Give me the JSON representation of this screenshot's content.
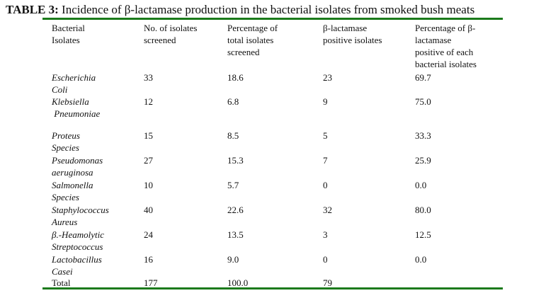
{
  "title": {
    "lead": "TABLE 3:",
    "text": " Incidence of β-lactamase production in the bacterial isolates from smoked bush meats"
  },
  "headers": {
    "col1": [
      "Bacterial",
      "Isolates"
    ],
    "col2": [
      "No. of isolates",
      "screened"
    ],
    "col3": [
      "Percentage of",
      "total isolates",
      "screened"
    ],
    "col4": [
      "β-lactamase",
      "positive isolates"
    ],
    "col5": [
      "Percentage of β-",
      "lactamase",
      "positive of each",
      "bacterial isolates"
    ]
  },
  "rows": [
    {
      "name": [
        "Escherichia",
        "Coli"
      ],
      "screened": "33",
      "pct_total": "18.6",
      "positive": "23",
      "pct_positive": "69.7"
    },
    {
      "name": [
        "Klebsiella",
        " Pneumoniae"
      ],
      "screened": "12",
      "pct_total": "6.8",
      "positive": "9",
      "pct_positive": "75.0"
    },
    {
      "name": [
        "Proteus",
        "Species"
      ],
      "screened": "15",
      "pct_total": "8.5",
      "positive": "5",
      "pct_positive": "33.3"
    },
    {
      "name": [
        "Pseudomonas",
        "aeruginosa"
      ],
      "screened": "27",
      "pct_total": "15.3",
      "positive": "7",
      "pct_positive": "25.9"
    },
    {
      "name": [
        "Salmonella",
        "Species"
      ],
      "screened": "10",
      "pct_total": "5.7",
      "positive": "0",
      "pct_positive": "0.0"
    },
    {
      "name": [
        "Staphylococcus",
        "Aureus"
      ],
      "screened": "40",
      "pct_total": "22.6",
      "positive": "32",
      "pct_positive": "80.0"
    },
    {
      "name": [
        "β.-Heamolytic",
        "Streptococcus"
      ],
      "screened": "24",
      "pct_total": "13.5",
      "positive": "3",
      "pct_positive": "12.5"
    },
    {
      "name": [
        "Lactobacillus",
        "Casei"
      ],
      "screened": "16",
      "pct_total": "9.0",
      "positive": "0",
      "pct_positive": "0.0"
    }
  ],
  "total": {
    "label": "Total",
    "screened": "177",
    "pct_total": "100.0",
    "positive": "79"
  },
  "colors": {
    "rule": "#1b7a1b"
  }
}
